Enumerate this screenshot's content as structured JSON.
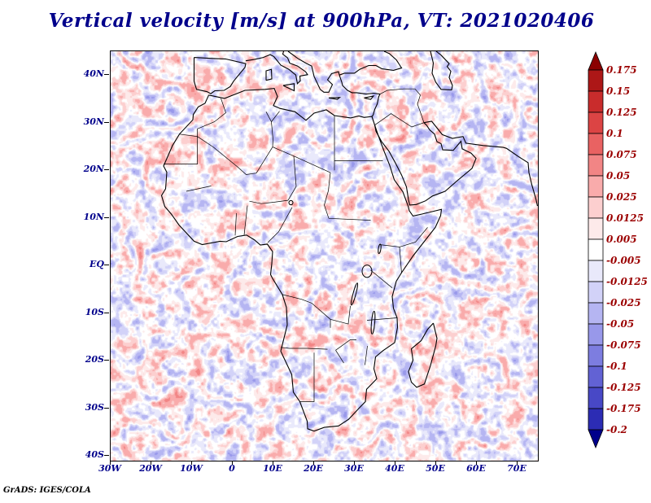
{
  "title": "Vertical velocity [m/s] at 900hPa, VT: 2021020406",
  "footer": {
    "credit": "GrADS: IGES/COLA"
  },
  "colors": {
    "title_text": "#00008b",
    "axis_label_text": "#00008b",
    "colorbar_label_text": "#9b0000",
    "map_outline": "#000000"
  },
  "chart_data": {
    "type": "heatmap",
    "title": "Vertical velocity [m/s] at 900hPa, VT: 2021020406",
    "variable": "Vertical velocity",
    "units": "m/s",
    "pressure_level": "900hPa",
    "valid_time": "2021020406",
    "region": "Africa, Mediterranean, Arabia and surrounding oceans",
    "lon_range": [
      -30,
      75
    ],
    "lat_range": [
      -41,
      45
    ],
    "xlabel_ticks": [
      "30W",
      "20W",
      "10W",
      "0",
      "10E",
      "20E",
      "30E",
      "40E",
      "50E",
      "60E",
      "70E"
    ],
    "ylabel_ticks": [
      "40N",
      "30N",
      "20N",
      "10N",
      "EQ",
      "10S",
      "20S",
      "30S",
      "40S"
    ],
    "grid": false,
    "legend_position": "right vertical colorbar",
    "colorbar_labels": [
      "0.175",
      "0.15",
      "0.125",
      "0.1",
      "0.075",
      "0.05",
      "0.025",
      "0.0125",
      "0.005",
      "-0.005",
      "-0.0125",
      "-0.025",
      "-0.05",
      "-0.075",
      "-0.1",
      "-0.125",
      "-0.175",
      "-0.2"
    ],
    "colorbar_levels": [
      0.175,
      0.15,
      0.125,
      0.1,
      0.075,
      0.05,
      0.025,
      0.0125,
      0.005,
      -0.005,
      -0.0125,
      -0.025,
      -0.05,
      -0.075,
      -0.1,
      -0.125,
      -0.175,
      -0.2
    ],
    "colorbar_segment_colors": [
      "#ad1717",
      "#c92c2c",
      "#dc4444",
      "#e96262",
      "#f28585",
      "#f9abab",
      "#fccfcf",
      "#fdeaea",
      "#ffffff",
      "#e9e9fb",
      "#d2d2f8",
      "#b5b5f2",
      "#9898ea",
      "#7d7de0",
      "#6262d4",
      "#4848c6",
      "#2c2cb4",
      "#8b8bde"
    ],
    "colorbar_top_arrow": "#8b0000",
    "colorbar_bottom_arrow": "#00008b",
    "field_style": "turbulent filamentary noise field; red = positive (upward), blue = negative (downward), white near zero; coastlines and country borders overlaid in black"
  }
}
